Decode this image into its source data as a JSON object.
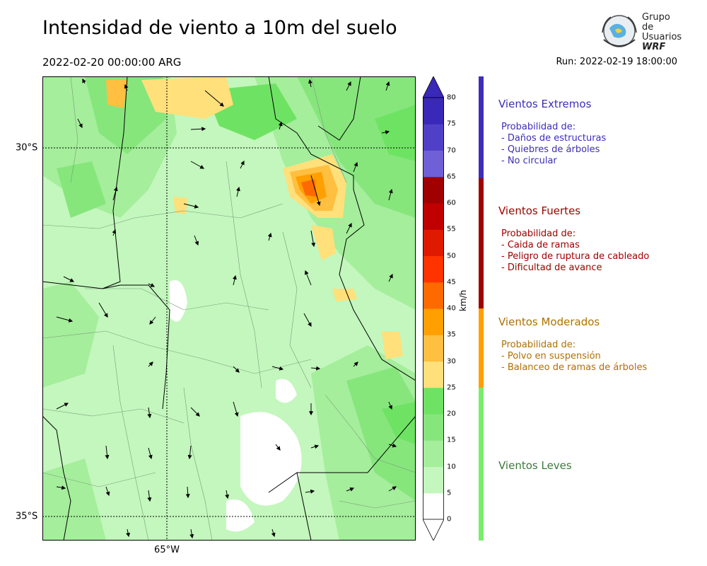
{
  "title": "Intensidad de viento a 10m del suelo",
  "valid_time": "2022-02-20 00:00:00 ARG",
  "run_time": "Run: 2022-02-19 18:00:00",
  "logo": {
    "line1": "Grupo de",
    "line2": "Usuarios",
    "line3": "WRF"
  },
  "map": {
    "lat_labels": [
      "30°S",
      "35°S"
    ],
    "lon_labels": [
      "65°W"
    ],
    "land_color": "#c3f7bd"
  },
  "colorbar": {
    "unit": "km/h",
    "ticks": [
      "0",
      "5",
      "10",
      "15",
      "20",
      "25",
      "30",
      "35",
      "40",
      "45",
      "50",
      "55",
      "60",
      "65",
      "70",
      "75",
      "80"
    ],
    "colors": [
      "#ffffff",
      "#c3f7bd",
      "#a5ee9c",
      "#86e67c",
      "#6ee363",
      "#ffe07a",
      "#ffbf40",
      "#ff9f00",
      "#ff6a00",
      "#ff3300",
      "#e01a00",
      "#c00000",
      "#a00000",
      "#7060d8",
      "#5040c8",
      "#3a28b8"
    ],
    "over_color": "#3a28b8"
  },
  "categories": [
    {
      "name": "Vientos Extremos",
      "color": "#3d2db8",
      "title": "Probabilidad de:",
      "items": [
        "- Daños de estructuras",
        "- Quiebres de árboles",
        "- No circular"
      ]
    },
    {
      "name": "Vientos Fuertes",
      "color": "#a00000",
      "title": "Probabilidad de:",
      "items": [
        "- Caida de ramas",
        "- Peligro de ruptura de cableado",
        "- Dificultad de avance"
      ]
    },
    {
      "name": "Vientos Moderados",
      "color": "#b07000",
      "title": "Probabilidad de:",
      "items": [
        "- Polvo en suspensión",
        "- Balanceo de ramas de árboles"
      ]
    },
    {
      "name": "Vientos Leves",
      "color": "#3c7a3c",
      "title": "",
      "items": []
    }
  ],
  "category_bar_colors": [
    "#3d2db8",
    "#a00000",
    "#ff9f00",
    "#78ee6c"
  ]
}
